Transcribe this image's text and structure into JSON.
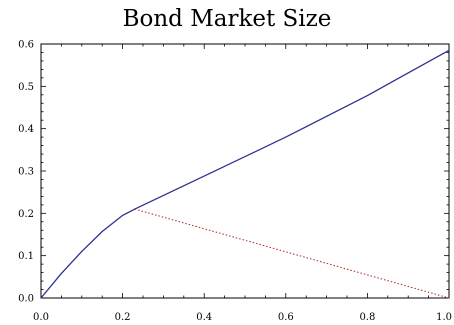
{
  "chart_data": {
    "type": "line",
    "title": "Bond Market Size",
    "xlabel": "",
    "ylabel": "",
    "xlim": [
      0.0,
      1.0
    ],
    "ylim": [
      0.0,
      0.6
    ],
    "x_ticks": [
      "0.0",
      "0.2",
      "0.4",
      "0.6",
      "0.8",
      "1.0"
    ],
    "y_ticks": [
      "0.0",
      "0.1",
      "0.2",
      "0.3",
      "0.4",
      "0.5",
      "0.6"
    ],
    "grid": false,
    "series": [
      {
        "style": "solid",
        "color": "#2e3192",
        "x": [
          0.0,
          0.05,
          0.1,
          0.15,
          0.2,
          0.23,
          0.4,
          0.6,
          0.8,
          1.0
        ],
        "y": [
          0.0,
          0.058,
          0.11,
          0.157,
          0.195,
          0.21,
          0.288,
          0.38,
          0.478,
          0.585
        ]
      },
      {
        "style": "dotted",
        "color": "#b22222",
        "x": [
          0.23,
          1.0
        ],
        "y": [
          0.21,
          0.0
        ]
      }
    ]
  }
}
